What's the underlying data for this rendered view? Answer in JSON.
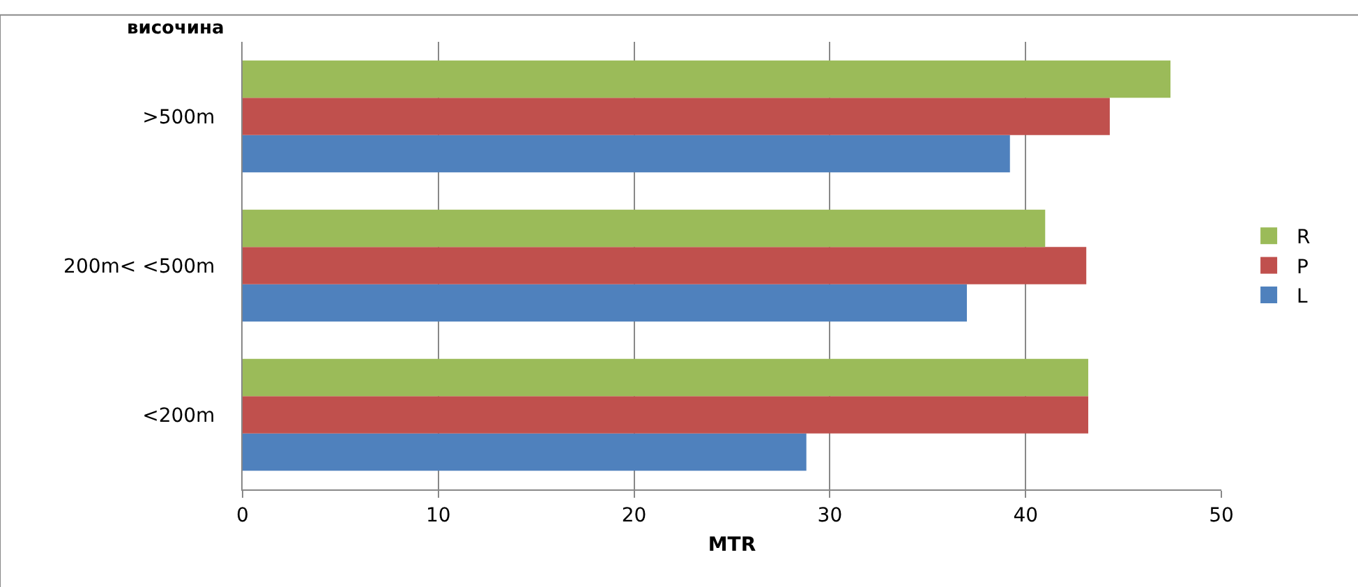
{
  "chart_data": {
    "type": "bar",
    "orientation": "horizontal",
    "ylabel": "височина",
    "xlabel": "MTR",
    "categories": [
      ">500m",
      "200m< <500m",
      "<200m"
    ],
    "series": [
      {
        "name": "L",
        "color": "#4f81bd",
        "values": [
          39.2,
          37.0,
          28.8
        ]
      },
      {
        "name": "P",
        "color": "#c0504d",
        "values": [
          44.3,
          43.1,
          43.2
        ]
      },
      {
        "name": "R",
        "color": "#9bbb59",
        "values": [
          47.4,
          41.0,
          43.2
        ]
      }
    ],
    "xlim": [
      0,
      50
    ],
    "xticks": [
      0,
      10,
      20,
      30,
      40,
      50
    ],
    "grid": "x",
    "legend": "right"
  }
}
